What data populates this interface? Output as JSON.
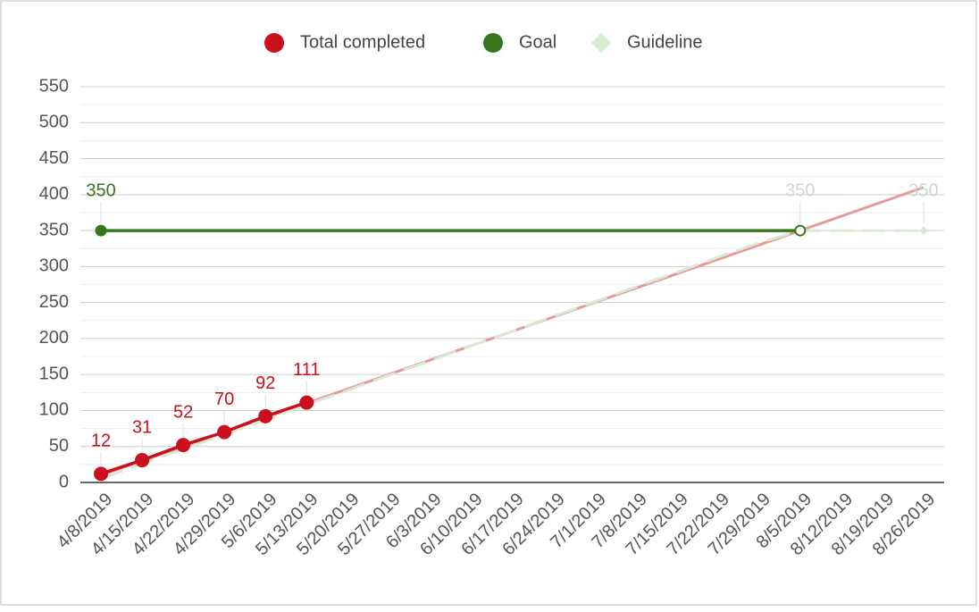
{
  "chart_data": {
    "type": "line",
    "categories": [
      "4/8/2019",
      "4/15/2019",
      "4/22/2019",
      "4/29/2019",
      "5/6/2019",
      "5/13/2019",
      "5/20/2019",
      "5/27/2019",
      "6/3/2019",
      "6/10/2019",
      "6/17/2019",
      "6/24/2019",
      "7/1/2019",
      "7/8/2019",
      "7/15/2019",
      "7/22/2019",
      "7/29/2019",
      "8/5/2019",
      "8/12/2019",
      "8/19/2019",
      "8/26/2019"
    ],
    "series": [
      {
        "name": "Total completed",
        "color": "#cc0f1d",
        "values": [
          12,
          31,
          52,
          70,
          92,
          111,
          null,
          null,
          null,
          null,
          null,
          null,
          null,
          null,
          null,
          null,
          null,
          null,
          null,
          null,
          null
        ],
        "value_labels": [
          "12",
          "31",
          "52",
          "70",
          "92",
          "111",
          null,
          null,
          null,
          null,
          null,
          null,
          null,
          null,
          null,
          null,
          null,
          null,
          null,
          null,
          null
        ]
      },
      {
        "name": "Goal",
        "color": "#38761d",
        "values": [
          350,
          350,
          350,
          350,
          350,
          350,
          350,
          350,
          350,
          350,
          350,
          350,
          350,
          350,
          350,
          350,
          350,
          350,
          null,
          null,
          null
        ],
        "value_labels": [
          "350",
          null,
          null,
          null,
          null,
          null,
          null,
          null,
          null,
          null,
          null,
          null,
          null,
          null,
          null,
          null,
          null,
          null,
          null,
          null,
          null
        ]
      },
      {
        "name": "Guideline",
        "color": "#d9ead3",
        "values": [
          5,
          26,
          46,
          67,
          87,
          108,
          128,
          149,
          169,
          190,
          210,
          231,
          251,
          272,
          292,
          313,
          333,
          350,
          350,
          350,
          350
        ],
        "value_labels": [
          null,
          null,
          null,
          null,
          null,
          null,
          null,
          null,
          null,
          null,
          null,
          null,
          null,
          null,
          null,
          null,
          null,
          "350",
          null,
          null,
          "350"
        ]
      }
    ],
    "trendline": {
      "color": "#e69999",
      "values": [
        10,
        30,
        50,
        70,
        90,
        110,
        130,
        150,
        170,
        190,
        210,
        230,
        250,
        270,
        290,
        310,
        330,
        350,
        370,
        390,
        410
      ]
    },
    "ylim": [
      0,
      550
    ],
    "yticks": [
      0,
      50,
      100,
      150,
      200,
      250,
      300,
      350,
      400,
      450,
      500,
      550
    ],
    "grid": true,
    "legend": "top"
  }
}
